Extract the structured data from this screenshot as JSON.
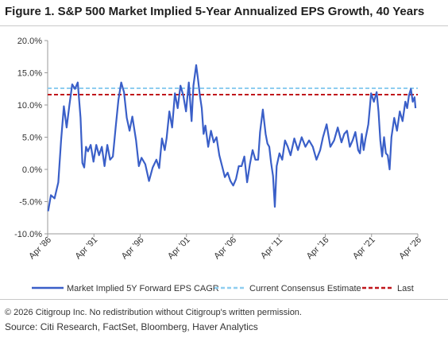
{
  "title": "Figure 1. S&P 500 Market Implied 5-Year Annualized EPS Growth, 40 Years",
  "copyright": "© 2026 Citigroup Inc. No redistribution without Citigroup's written permission.",
  "source": "Source: Citi Research, FactSet, Bloomberg, Haver Analytics",
  "colors": {
    "series": "#3a5fc8",
    "consensus": "#8ecdf0",
    "last": "#c0161b",
    "axis": "#9a9a9a"
  },
  "chart_data": {
    "type": "line",
    "title": "Figure 1. S&P 500 Market Implied 5-Year Annualized EPS Growth, 40 Years",
    "xlabel": "",
    "ylabel": "",
    "ylim": [
      -10,
      20
    ],
    "y_ticks": [
      20,
      15,
      10,
      5,
      0,
      -5,
      -10
    ],
    "y_tick_labels": [
      "20.0%",
      "15.0%",
      "10.0%",
      "5.0%",
      "0.0%",
      "-5.0%",
      "-10.0%"
    ],
    "xlim": [
      1986.25,
      2026.25
    ],
    "x_ticks": [
      1986.25,
      1991.25,
      1996.25,
      2001.25,
      2006.25,
      2011.25,
      2016.25,
      2021.25,
      2026.25
    ],
    "x_tick_labels": [
      "Apr '86",
      "Apr '91",
      "Apr '96",
      "Apr '01",
      "Apr '06",
      "Apr '11",
      "Apr '16",
      "Apr '21",
      "Apr '26"
    ],
    "grid": false,
    "legend_position": "bottom",
    "series": [
      {
        "name": "Market Implied 5Y Forward EPS CAGR",
        "style": "solid",
        "x": [
          1986.3,
          1986.6,
          1987.0,
          1987.4,
          1987.7,
          1988.0,
          1988.3,
          1988.6,
          1988.9,
          1989.2,
          1989.5,
          1989.8,
          1990.0,
          1990.2,
          1990.4,
          1990.6,
          1990.9,
          1991.2,
          1991.5,
          1991.8,
          1992.1,
          1992.4,
          1992.7,
          1993.0,
          1993.3,
          1993.6,
          1993.9,
          1994.2,
          1994.5,
          1994.8,
          1995.1,
          1995.4,
          1995.8,
          1996.1,
          1996.4,
          1996.8,
          1997.2,
          1997.6,
          1998.0,
          1998.3,
          1998.6,
          1998.9,
          1999.1,
          1999.4,
          1999.7,
          2000.0,
          2000.3,
          2000.6,
          2000.9,
          2001.2,
          2001.5,
          2001.8,
          2002.0,
          2002.3,
          2002.5,
          2002.7,
          2002.9,
          2003.1,
          2003.3,
          2003.6,
          2003.9,
          2004.2,
          2004.5,
          2004.8,
          2005.1,
          2005.4,
          2005.7,
          2006.0,
          2006.3,
          2006.6,
          2006.9,
          2007.2,
          2007.5,
          2007.8,
          2008.1,
          2008.4,
          2008.7,
          2009.0,
          2009.2,
          2009.5,
          2009.8,
          2010.0,
          2010.2,
          2010.4,
          2010.6,
          2010.8,
          2011.0,
          2011.3,
          2011.6,
          2011.9,
          2012.2,
          2012.5,
          2012.9,
          2013.3,
          2013.7,
          2014.1,
          2014.5,
          2014.9,
          2015.3,
          2015.7,
          2016.0,
          2016.4,
          2016.8,
          2017.2,
          2017.6,
          2018.0,
          2018.3,
          2018.6,
          2018.9,
          2019.2,
          2019.5,
          2019.8,
          2020.0,
          2020.2,
          2020.4,
          2020.6,
          2020.9,
          2021.2,
          2021.5,
          2021.8,
          2022.0,
          2022.2,
          2022.4,
          2022.6,
          2022.8,
          2023.0,
          2023.2,
          2023.4,
          2023.7,
          2024.0,
          2024.3,
          2024.6,
          2024.9,
          2025.1,
          2025.3,
          2025.5,
          2025.7,
          2025.9,
          2026.0
        ],
        "values": [
          -6.5,
          -4.0,
          -4.5,
          -2.0,
          4.5,
          9.8,
          6.5,
          10.0,
          13.2,
          12.5,
          13.5,
          8.0,
          1.0,
          0.3,
          3.5,
          2.8,
          3.8,
          1.2,
          3.8,
          2.2,
          3.5,
          0.5,
          3.8,
          1.5,
          2.0,
          6.5,
          10.8,
          13.5,
          12.0,
          8.0,
          6.0,
          8.2,
          4.5,
          0.5,
          1.8,
          0.8,
          -1.8,
          0.3,
          1.5,
          0.2,
          4.8,
          3.0,
          4.8,
          9.0,
          6.5,
          11.8,
          9.5,
          13.0,
          11.5,
          9.0,
          13.5,
          7.5,
          13.0,
          16.2,
          14.0,
          11.5,
          9.5,
          5.5,
          6.8,
          3.5,
          6.0,
          4.2,
          5.0,
          2.2,
          0.5,
          -1.2,
          -0.5,
          -1.8,
          -2.5,
          -1.5,
          0.5,
          0.5,
          2.0,
          -2.0,
          0.8,
          3.0,
          1.5,
          1.5,
          5.8,
          9.3,
          5.5,
          4.0,
          3.5,
          1.0,
          -1.0,
          -5.8,
          0.5,
          2.5,
          1.5,
          4.5,
          3.5,
          2.2,
          4.8,
          3.0,
          5.0,
          3.5,
          4.5,
          3.5,
          1.5,
          3.0,
          5.0,
          7.0,
          3.5,
          4.5,
          6.5,
          4.2,
          5.5,
          6.0,
          3.5,
          4.5,
          5.8,
          3.0,
          2.5,
          5.5,
          3.0,
          4.8,
          7.0,
          11.8,
          10.5,
          12.0,
          9.0,
          4.5,
          2.0,
          5.0,
          2.5,
          2.2,
          0.0,
          5.0,
          8.0,
          6.0,
          9.0,
          7.5,
          10.5,
          9.5,
          11.5,
          12.5,
          10.5,
          11.2,
          9.5
        ]
      },
      {
        "name": "Current Consensus Estimate",
        "style": "dashed",
        "constant": 12.6
      },
      {
        "name": "Last",
        "style": "dashed",
        "constant": 11.6
      }
    ]
  }
}
